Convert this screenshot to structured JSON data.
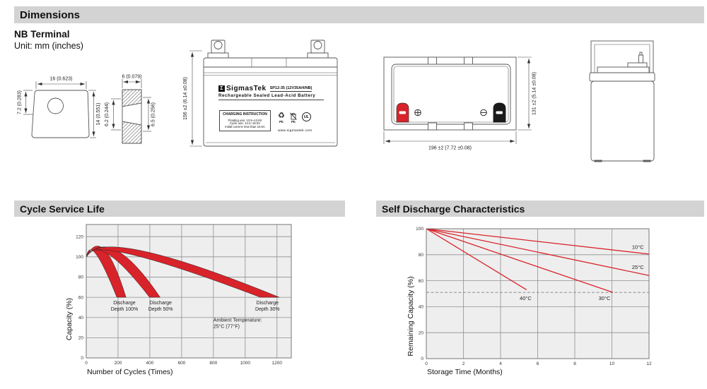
{
  "colors": {
    "header_bg": "#d3d3d3",
    "header_text": "#111111",
    "red": "#d8232a",
    "plot_bg": "#eeeeee",
    "grid": "#909090",
    "plot_border": "#777777",
    "draw_line": "#555555",
    "dim_text": "#222222"
  },
  "headers": {
    "dimensions": "Dimensions",
    "cycle": "Cycle Service Life",
    "self_discharge": "Self Discharge Characteristics"
  },
  "dimensions_section": {
    "subtitle": "NB Terminal",
    "unit": "Unit: mm (inches)"
  },
  "terminal_front": {
    "top_dim": "16 (0.623)",
    "left_dim": "7.2 (0.283)",
    "right_dim": "14 (0.551)"
  },
  "terminal_side": {
    "top_dim": "6 (0.079)",
    "left_dim": "6.2 (0.244)",
    "right_dim": "6.5 (0.256)"
  },
  "battery_front": {
    "height_dim": "156 ±2 (6.14 ±0.08)",
    "logo_glyph": "Σ",
    "brand": "SigmasTek",
    "model": "SP12-35 (12V35AH/NB)",
    "type_line": "Rechargeable Sealed Lead-Acid Battery",
    "charging_title": "CHARGING INSTRUCTION",
    "charging_lines": [
      "Floating use: 13.5~13.8V",
      "Cycle use: 14.4~15.0V",
      "Initial current: less than 10.5A"
    ],
    "recycle_glyph": "♻",
    "pb_label": "Pb",
    "ul_label": "UL",
    "website": "www.sigmastek.com"
  },
  "battery_top": {
    "width_dim": "196 ±2 (7.72 ±0.08)",
    "height_dim": "131 ±2 (5.14 ±0.08)"
  },
  "chart_data": [
    {
      "type": "area",
      "title": "Cycle Service Life",
      "xlabel": "Number of Cycles (Times)",
      "ylabel": "Capacity (%)",
      "xlim": [
        0,
        1290
      ],
      "ylim": [
        0,
        132
      ],
      "x_ticks": [
        0,
        200,
        400,
        600,
        800,
        1000,
        1200
      ],
      "y_ticks": [
        0,
        20,
        40,
        60,
        80,
        100,
        120
      ],
      "grid": true,
      "bands": [
        {
          "name": "Discharge Depth 100%",
          "upper": [
            [
              0,
              100
            ],
            [
              115,
              107
            ],
            [
              250,
              60
            ]
          ],
          "lower": [
            [
              0,
              99
            ],
            [
              60,
              103
            ],
            [
              192,
              60
            ]
          ]
        },
        {
          "name": "Discharge Depth 50%",
          "upper": [
            [
              0,
              100
            ],
            [
              195,
              106
            ],
            [
              465,
              60
            ]
          ],
          "lower": [
            [
              0,
              99
            ],
            [
              135,
              103
            ],
            [
              398,
              60
            ]
          ]
        },
        {
          "name": "Discharge Depth 30%",
          "upper": [
            [
              0,
              100
            ],
            [
              350,
              106
            ],
            [
              1215,
              60
            ]
          ],
          "lower": [
            [
              0,
              99
            ],
            [
              265,
              103
            ],
            [
              1095,
              60
            ]
          ]
        }
      ],
      "annotations": [
        {
          "lines": [
            "Discharge",
            "Depth 100%"
          ],
          "x": 240,
          "y": 53,
          "align": "middle"
        },
        {
          "lines": [
            "Discharge",
            "Depth 50%"
          ],
          "x": 468,
          "y": 53,
          "align": "middle"
        },
        {
          "lines": [
            "Discharge",
            "Depth 30%"
          ],
          "x": 1140,
          "y": 53,
          "align": "middle"
        },
        {
          "lines": [
            "Ambient Temperature:",
            "25°C (77°F)"
          ],
          "x": 800,
          "y": 36,
          "align": "start"
        }
      ]
    },
    {
      "type": "line",
      "title": "Self Discharge Characteristics",
      "xlabel": "Storage Time (Months)",
      "ylabel": "Remaining Capacity (%)",
      "xlim": [
        0,
        12
      ],
      "ylim": [
        0,
        100
      ],
      "x_ticks": [
        0,
        2,
        4,
        6,
        8,
        10,
        12
      ],
      "y_ticks": [
        0,
        20,
        40,
        60,
        80,
        100
      ],
      "grid": true,
      "dashed_line_y": 51,
      "series": [
        {
          "name": "10°C",
          "points": [
            [
              0,
              100
            ],
            [
              12,
              80.5
            ]
          ],
          "label_xy": [
            11.4,
            84.5
          ]
        },
        {
          "name": "25°C",
          "points": [
            [
              0,
              100
            ],
            [
              12,
              64
            ]
          ],
          "label_xy": [
            11.4,
            69
          ]
        },
        {
          "name": "30°C",
          "points": [
            [
              0,
              100
            ],
            [
              10.05,
              51
            ]
          ],
          "label_xy": [
            9.6,
            45
          ]
        },
        {
          "name": "40°C",
          "points": [
            [
              0,
              100
            ],
            [
              5.4,
              53
            ]
          ],
          "label_xy": [
            5.35,
            45
          ]
        }
      ]
    }
  ]
}
